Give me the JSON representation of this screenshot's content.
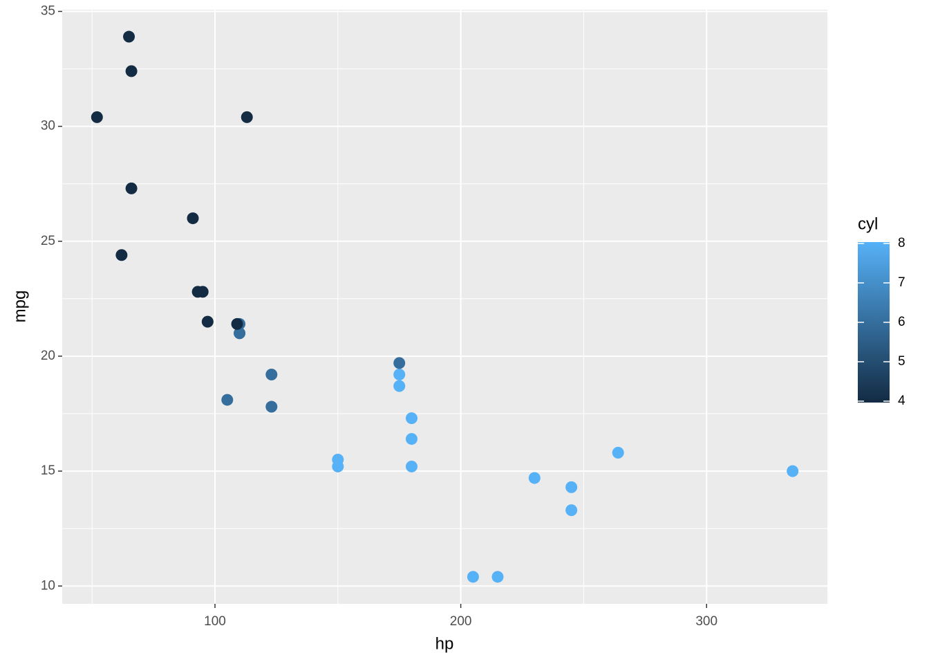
{
  "chart_data": {
    "type": "scatter",
    "x_label": "hp",
    "y_label": "mpg",
    "x": [
      110,
      110,
      93,
      110,
      175,
      105,
      245,
      62,
      95,
      123,
      123,
      180,
      180,
      180,
      205,
      215,
      230,
      66,
      52,
      65,
      97,
      150,
      150,
      245,
      175,
      66,
      91,
      113,
      264,
      175,
      335,
      109
    ],
    "y": [
      21,
      21,
      22.8,
      21.4,
      18.7,
      18.1,
      14.3,
      24.4,
      22.8,
      19.2,
      17.8,
      16.4,
      17.3,
      15.2,
      10.4,
      10.4,
      14.7,
      32.4,
      30.4,
      33.9,
      21.5,
      15.5,
      15.2,
      13.3,
      19.2,
      27.3,
      26,
      30.4,
      15.8,
      19.7,
      15,
      21.4
    ],
    "color_values": [
      6,
      6,
      4,
      6,
      8,
      6,
      8,
      4,
      4,
      6,
      6,
      8,
      8,
      8,
      8,
      8,
      8,
      4,
      4,
      4,
      4,
      8,
      8,
      8,
      8,
      4,
      4,
      4,
      8,
      6,
      8,
      4
    ],
    "xlim": [
      37.85,
      349.15
    ],
    "xticks": [
      100,
      200,
      300
    ],
    "x_minor_ticks": [
      50,
      150,
      250
    ],
    "ylim": [
      9.225,
      35.075
    ],
    "yticks": [
      10,
      15,
      20,
      25,
      30,
      35
    ],
    "y_minor_ticks": [
      12.5,
      17.5,
      22.5,
      27.5,
      32.5
    ],
    "grid": true,
    "panel_color": "#EBEBEB",
    "colorbar": {
      "title": "cyl",
      "lim": [
        4,
        8
      ],
      "ticks": [
        4,
        5,
        6,
        7,
        8
      ],
      "colors": [
        "#132B43",
        "#56B1F7"
      ]
    }
  }
}
